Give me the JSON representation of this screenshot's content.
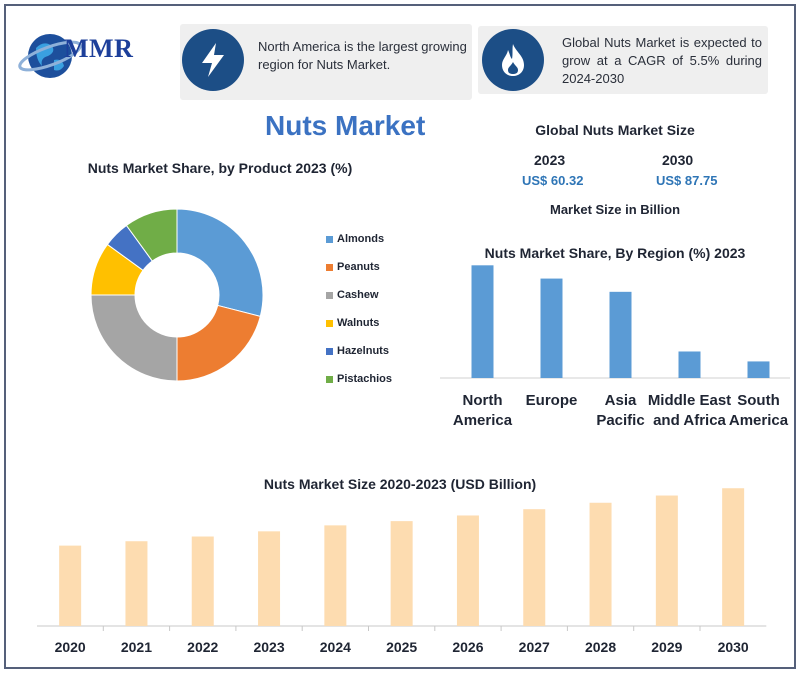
{
  "header": {
    "logo_text": "MMR",
    "info1_text": "North America is the largest growing region for Nuts Market.",
    "info2_text": "Global Nuts Market is expected to grow at a CAGR of 5.5% during 2024-2030",
    "info1_icon": "lightning-icon",
    "info2_icon": "flame-icon"
  },
  "title": "Nuts Market",
  "market_size": {
    "title": "Global Nuts Market Size",
    "year_start": "2023",
    "value_start": "US$ 60.32",
    "year_end": "2030",
    "value_end": "US$ 87.75",
    "unit_note": "Market Size in Billion"
  },
  "colors": {
    "almonds": "#5b9bd5",
    "peanuts": "#ed7d31",
    "cashew": "#a5a5a5",
    "walnuts": "#ffc000",
    "hazelnuts": "#4472c4",
    "pistachios": "#70ad47",
    "region_bar": "#5b9bd5",
    "size_bar": "#fddcb0"
  },
  "chart_data": [
    {
      "type": "pie",
      "title": "Nuts Market Share, by Product 2023 (%)",
      "categories": [
        "Almonds",
        "Peanuts",
        "Cashew",
        "Walnuts",
        "Hazelnuts",
        "Pistachios"
      ],
      "values": [
        29,
        21,
        25,
        10,
        5,
        10
      ],
      "donut": true,
      "legend": "right"
    },
    {
      "type": "bar",
      "title": "Nuts Market Share, By Region (%) 2023",
      "categories": [
        "North America",
        "Europe",
        "Asia Pacific",
        "Middle East and Africa",
        "South America"
      ],
      "values": [
        34,
        30,
        26,
        8,
        5
      ],
      "ylim": [
        0,
        35
      ],
      "grid": false
    },
    {
      "type": "bar",
      "title": "Nuts Market Size 2020-2023 (USD Billion)",
      "categories": [
        "2020",
        "2021",
        "2022",
        "2023",
        "2024",
        "2025",
        "2026",
        "2027",
        "2028",
        "2029",
        "2030"
      ],
      "values": [
        51.2,
        54.0,
        57.0,
        60.3,
        64.1,
        66.8,
        70.4,
        74.4,
        78.5,
        83.1,
        87.75
      ],
      "ylim": [
        0,
        100
      ],
      "grid": false
    }
  ]
}
